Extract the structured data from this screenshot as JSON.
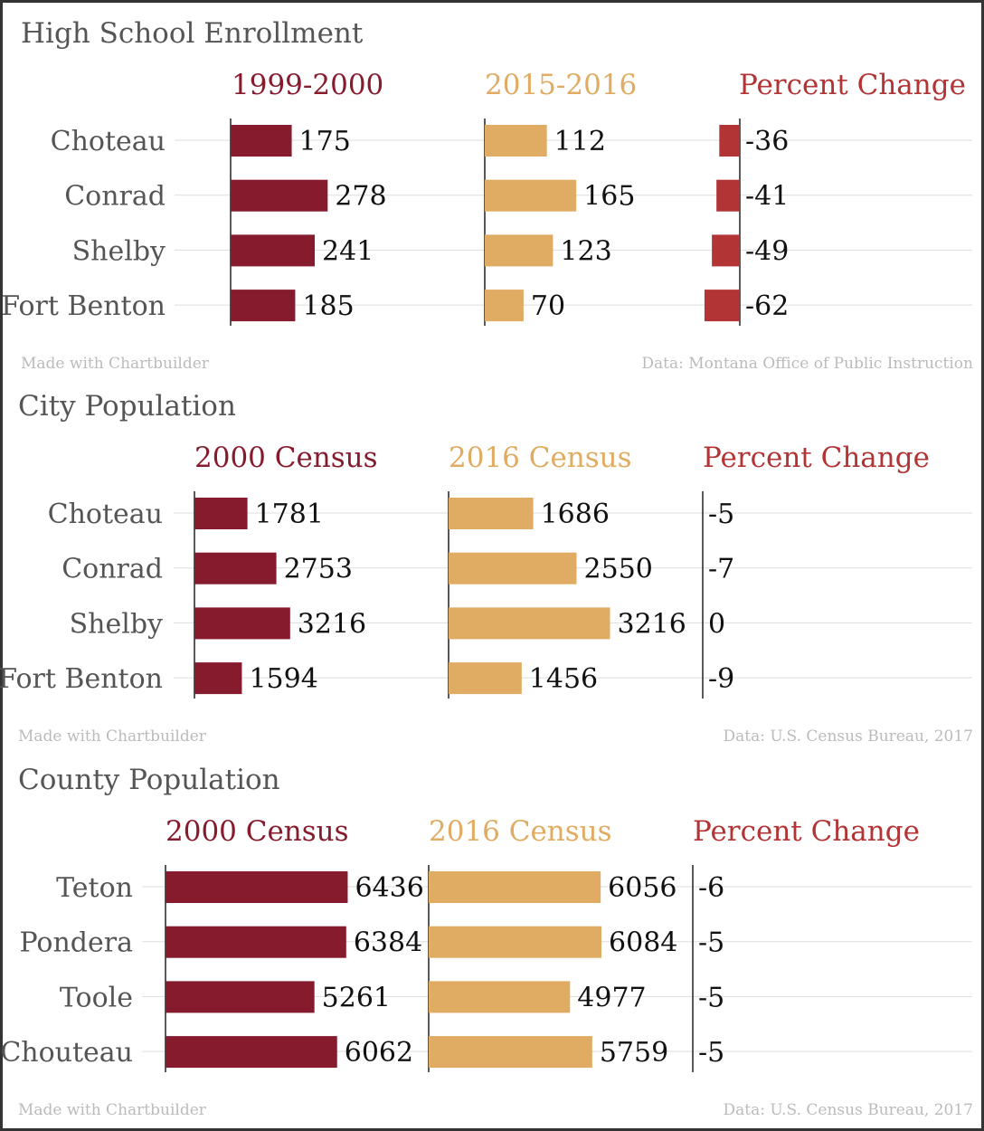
{
  "colors": {
    "series1": "#861b2d",
    "series2": "#e0ab62",
    "change": "#b23434",
    "title": "#555555",
    "footer": "#bbbbbb"
  },
  "chart_data": [
    {
      "type": "bar",
      "title": "High School Enrollment",
      "categories": [
        "Choteau",
        "Conrad",
        "Shelby",
        "Fort Benton"
      ],
      "series": [
        {
          "name": "1999-2000",
          "values": [
            175,
            278,
            241,
            185
          ]
        },
        {
          "name": "2015-2016",
          "values": [
            112,
            165,
            123,
            70
          ]
        },
        {
          "name": "Percent Change",
          "values": [
            -36,
            -41,
            -49,
            -62
          ]
        }
      ],
      "footer_left": "Made with Chartbuilder",
      "footer_right": "Data: Montana Office of Public Instruction"
    },
    {
      "type": "bar",
      "title": "City Population",
      "categories": [
        "Choteau",
        "Conrad",
        "Shelby",
        "Fort Benton"
      ],
      "series": [
        {
          "name": "2000 Census",
          "values": [
            1781,
            2753,
            3216,
            1594
          ]
        },
        {
          "name": "2016 Census",
          "values": [
            1686,
            2550,
            3216,
            1456
          ]
        },
        {
          "name": "Percent Change",
          "values": [
            -5,
            -7,
            0,
            -9
          ]
        }
      ],
      "footer_left": "Made with Chartbuilder",
      "footer_right": "Data: U.S. Census Bureau, 2017"
    },
    {
      "type": "bar",
      "title": "County Population",
      "categories": [
        "Teton",
        "Pondera",
        "Toole",
        "Chouteau"
      ],
      "series": [
        {
          "name": "2000 Census",
          "values": [
            6436,
            6384,
            5261,
            6062
          ]
        },
        {
          "name": "2016 Census",
          "values": [
            6056,
            6084,
            4977,
            5759
          ]
        },
        {
          "name": "Percent Change",
          "values": [
            -6,
            -5,
            -5,
            -5
          ]
        }
      ],
      "footer_left": "Made with Chartbuilder",
      "footer_right": "Data: U.S. Census Bureau, 2017"
    }
  ]
}
